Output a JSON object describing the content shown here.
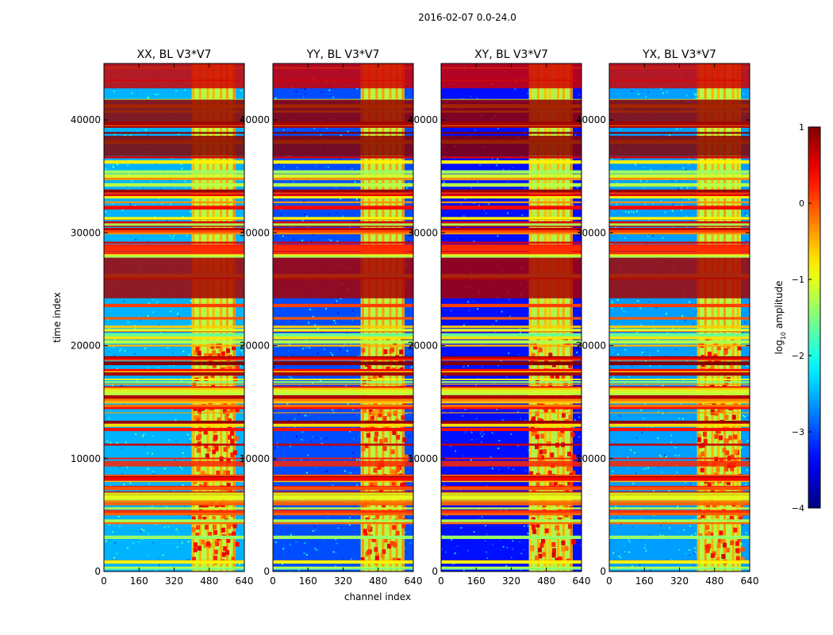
{
  "chart_data": {
    "type": "heatmap",
    "suptitle": "2016-02-07 0.0-24.0",
    "xlabel": "channel index",
    "ylabel": "time index",
    "xlim": [
      0,
      640
    ],
    "ylim": [
      0,
      45000
    ],
    "xticks": [
      0,
      160,
      320,
      480,
      640
    ],
    "yticks": [
      0,
      10000,
      20000,
      30000,
      40000
    ],
    "panels": [
      {
        "title": "XX, BL V3*V7",
        "base_level": -2.5
      },
      {
        "title": "YY, BL V3*V7",
        "base_level": -3.0
      },
      {
        "title": "XY, BL V3*V7",
        "base_level": -3.3
      },
      {
        "title": "YX, BL V3*V7",
        "base_level": -2.6
      }
    ],
    "flagged_channel_band": [
      400,
      600
    ],
    "colorbar": {
      "label": "log",
      "label_sub": "10",
      "label_rest": " amplitude",
      "min": -4,
      "max": 1,
      "ticks": [
        1,
        0,
        -1,
        -2,
        -3,
        -4
      ],
      "tick_labels": [
        "1",
        "0",
        "−1",
        "−2",
        "−3",
        "−4"
      ],
      "colormap": "jet"
    }
  }
}
